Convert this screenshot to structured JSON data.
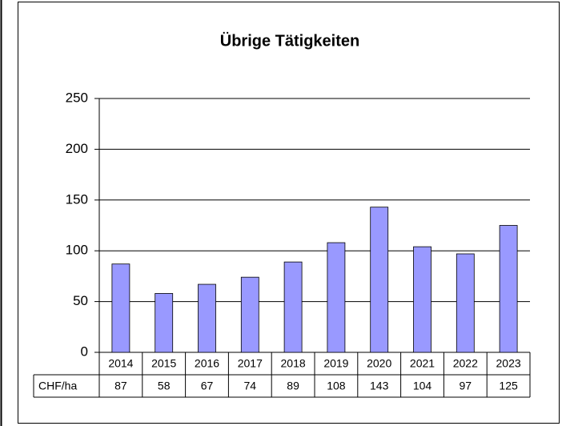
{
  "chart_data": {
    "type": "bar",
    "title": "Übrige Tätigkeiten",
    "categories": [
      "2014",
      "2015",
      "2016",
      "2017",
      "2018",
      "2019",
      "2020",
      "2021",
      "2022",
      "2023"
    ],
    "series": [
      {
        "name": "CHF/ha",
        "color": "#9999ff",
        "values": [
          87,
          58,
          67,
          74,
          89,
          108,
          143,
          104,
          97,
          125
        ]
      }
    ],
    "ylim": [
      0,
      250
    ],
    "yticks": [
      0,
      50,
      100,
      150,
      200,
      250
    ],
    "grid": true
  }
}
